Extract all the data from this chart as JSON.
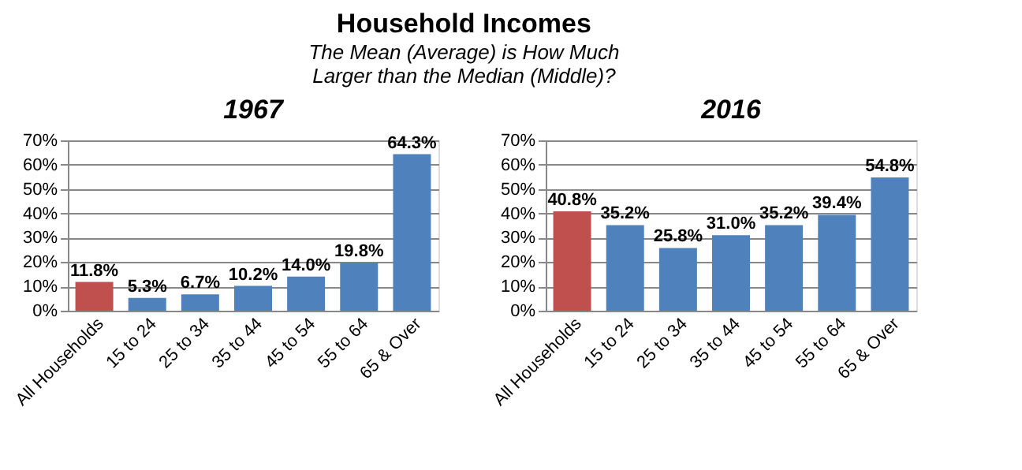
{
  "chart_data": [
    {
      "type": "other",
      "title": "Household Incomes",
      "subtitle": "The Mean (Average) is How Much Larger than the Median (Middle)?"
    },
    {
      "type": "bar",
      "title": "1967",
      "categories": [
        "All Households",
        "15 to 24",
        "25 to 34",
        "35 to 44",
        "45 to 54",
        "55 to 64",
        "65 & Over"
      ],
      "values": [
        11.8,
        5.3,
        6.7,
        10.2,
        14.0,
        19.8,
        64.3
      ],
      "value_labels": [
        "11.8%",
        "5.3%",
        "6.7%",
        "10.2%",
        "14.0%",
        "19.8%",
        "64.3%"
      ],
      "colors": [
        "#c0504d",
        "#4f81bd",
        "#4f81bd",
        "#4f81bd",
        "#4f81bd",
        "#4f81bd",
        "#4f81bd"
      ],
      "ylim": [
        0,
        70
      ],
      "yticks": [
        {
          "value": 0,
          "label": "0%"
        },
        {
          "value": 10,
          "label": "10%"
        },
        {
          "value": 20,
          "label": "20%"
        },
        {
          "value": 30,
          "label": "30%"
        },
        {
          "value": 40,
          "label": "40%"
        },
        {
          "value": 50,
          "label": "50%"
        },
        {
          "value": 60,
          "label": "60%"
        },
        {
          "value": 70,
          "label": "70%"
        }
      ],
      "grid": "y",
      "legend": false
    },
    {
      "type": "bar",
      "title": "2016",
      "categories": [
        "All Households",
        "15 to 24",
        "25 to 34",
        "35 to 44",
        "45 to 54",
        "55 to 64",
        "65 & Over"
      ],
      "values": [
        40.8,
        35.2,
        25.8,
        31.0,
        35.2,
        39.4,
        54.8
      ],
      "value_labels": [
        "40.8%",
        "35.2%",
        "25.8%",
        "31.0%",
        "35.2%",
        "39.4%",
        "54.8%"
      ],
      "colors": [
        "#c0504d",
        "#4f81bd",
        "#4f81bd",
        "#4f81bd",
        "#4f81bd",
        "#4f81bd",
        "#4f81bd"
      ],
      "ylim": [
        0,
        70
      ],
      "yticks": [
        {
          "value": 0,
          "label": "0%"
        },
        {
          "value": 10,
          "label": "10%"
        },
        {
          "value": 20,
          "label": "20%"
        },
        {
          "value": 30,
          "label": "30%"
        },
        {
          "value": 40,
          "label": "40%"
        },
        {
          "value": 50,
          "label": "50%"
        },
        {
          "value": 60,
          "label": "60%"
        },
        {
          "value": 70,
          "label": "70%"
        }
      ],
      "grid": "y",
      "legend": false
    }
  ]
}
